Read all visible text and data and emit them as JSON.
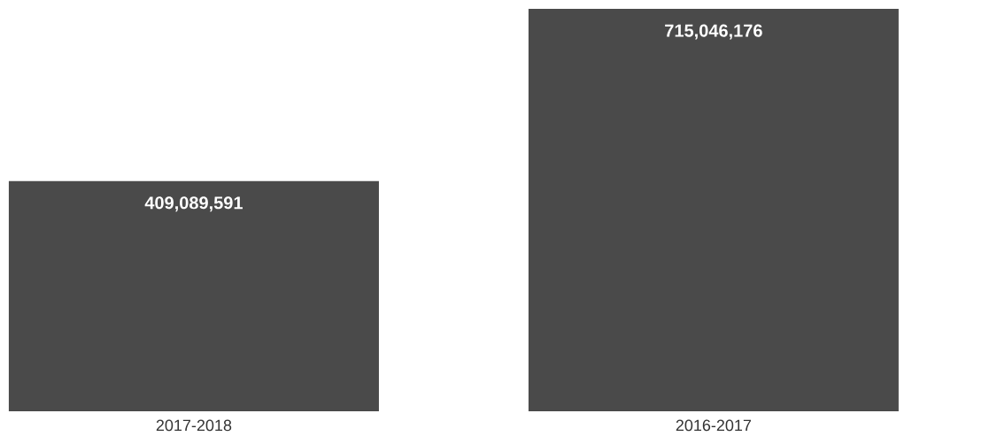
{
  "chart_data": {
    "type": "bar",
    "categories": [
      "2017-2018",
      "2016-2017"
    ],
    "values": [
      409089591,
      715046176
    ],
    "value_labels": [
      "409,089,591",
      "715,046,176"
    ],
    "color": "#4a4a4a",
    "ylim": [
      0,
      715046176
    ]
  }
}
